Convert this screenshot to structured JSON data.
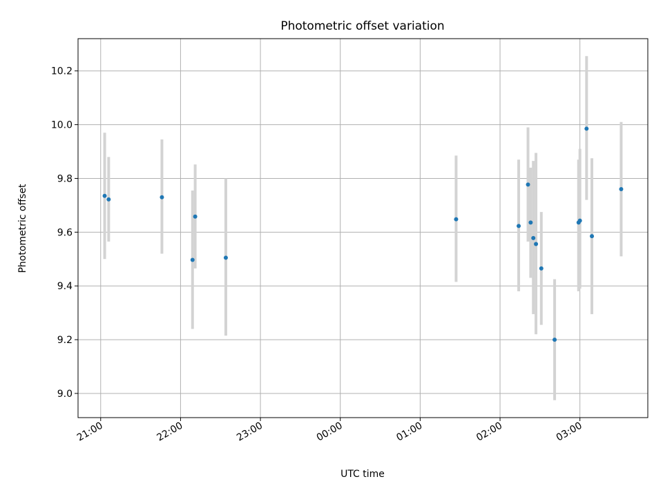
{
  "chart_data": {
    "type": "scatter",
    "title": "Photometric offset variation",
    "xlabel": "UTC time",
    "ylabel": "Photometric offset",
    "x_tick_labels": [
      "21:00",
      "22:00",
      "23:00",
      "00:00",
      "01:00",
      "02:00",
      "03:00"
    ],
    "x_ticks": [
      "21:00",
      "22:00",
      "23:00",
      "00:00",
      "01:00",
      "02:00",
      "03:00"
    ],
    "xlim": [
      "20:43",
      "03:51"
    ],
    "ylim": [
      8.91,
      10.32
    ],
    "y_ticks": [
      9.0,
      9.2,
      9.4,
      9.6,
      9.8,
      10.0,
      10.2
    ],
    "y_tick_labels": [
      "9.0",
      "9.2",
      "9.4",
      "9.6",
      "9.8",
      "10.0",
      "10.2"
    ],
    "grid": true,
    "colors": {
      "point": "#1f77b4",
      "errorbar": "#d3d3d3",
      "grid": "#b0b0b0"
    },
    "series": [
      {
        "points": [
          {
            "x": "21:03",
            "y": 9.735,
            "ylow": 9.5,
            "yhigh": 9.97
          },
          {
            "x": "21:06",
            "y": 9.722,
            "ylow": 9.565,
            "yhigh": 9.88
          },
          {
            "x": "21:46",
            "y": 9.73,
            "ylow": 9.52,
            "yhigh": 9.945
          },
          {
            "x": "22:09",
            "y": 9.497,
            "ylow": 9.24,
            "yhigh": 9.755
          },
          {
            "x": "22:11",
            "y": 9.658,
            "ylow": 9.465,
            "yhigh": 9.852
          },
          {
            "x": "22:34",
            "y": 9.505,
            "ylow": 9.215,
            "yhigh": 9.8
          },
          {
            "x": "01:27",
            "y": 9.648,
            "ylow": 9.415,
            "yhigh": 9.885
          },
          {
            "x": "02:14",
            "y": 9.623,
            "ylow": 9.38,
            "yhigh": 9.87
          },
          {
            "x": "02:21",
            "y": 9.777,
            "ylow": 9.565,
            "yhigh": 9.99
          },
          {
            "x": "02:23",
            "y": 9.636,
            "ylow": 9.43,
            "yhigh": 9.84
          },
          {
            "x": "02:25",
            "y": 9.578,
            "ylow": 9.295,
            "yhigh": 9.865
          },
          {
            "x": "02:27",
            "y": 9.556,
            "ylow": 9.22,
            "yhigh": 9.895
          },
          {
            "x": "02:31",
            "y": 9.465,
            "ylow": 9.255,
            "yhigh": 9.675
          },
          {
            "x": "02:41",
            "y": 9.2,
            "ylow": 8.975,
            "yhigh": 9.425
          },
          {
            "x": "02:59",
            "y": 9.636,
            "ylow": 9.38,
            "yhigh": 9.87
          },
          {
            "x": "03:00",
            "y": 9.643,
            "ylow": 9.39,
            "yhigh": 9.91
          },
          {
            "x": "03:05",
            "y": 9.985,
            "ylow": 9.72,
            "yhigh": 10.255
          },
          {
            "x": "03:09",
            "y": 9.585,
            "ylow": 9.295,
            "yhigh": 9.875
          },
          {
            "x": "03:31",
            "y": 9.76,
            "ylow": 9.51,
            "yhigh": 10.01
          }
        ]
      }
    ]
  }
}
